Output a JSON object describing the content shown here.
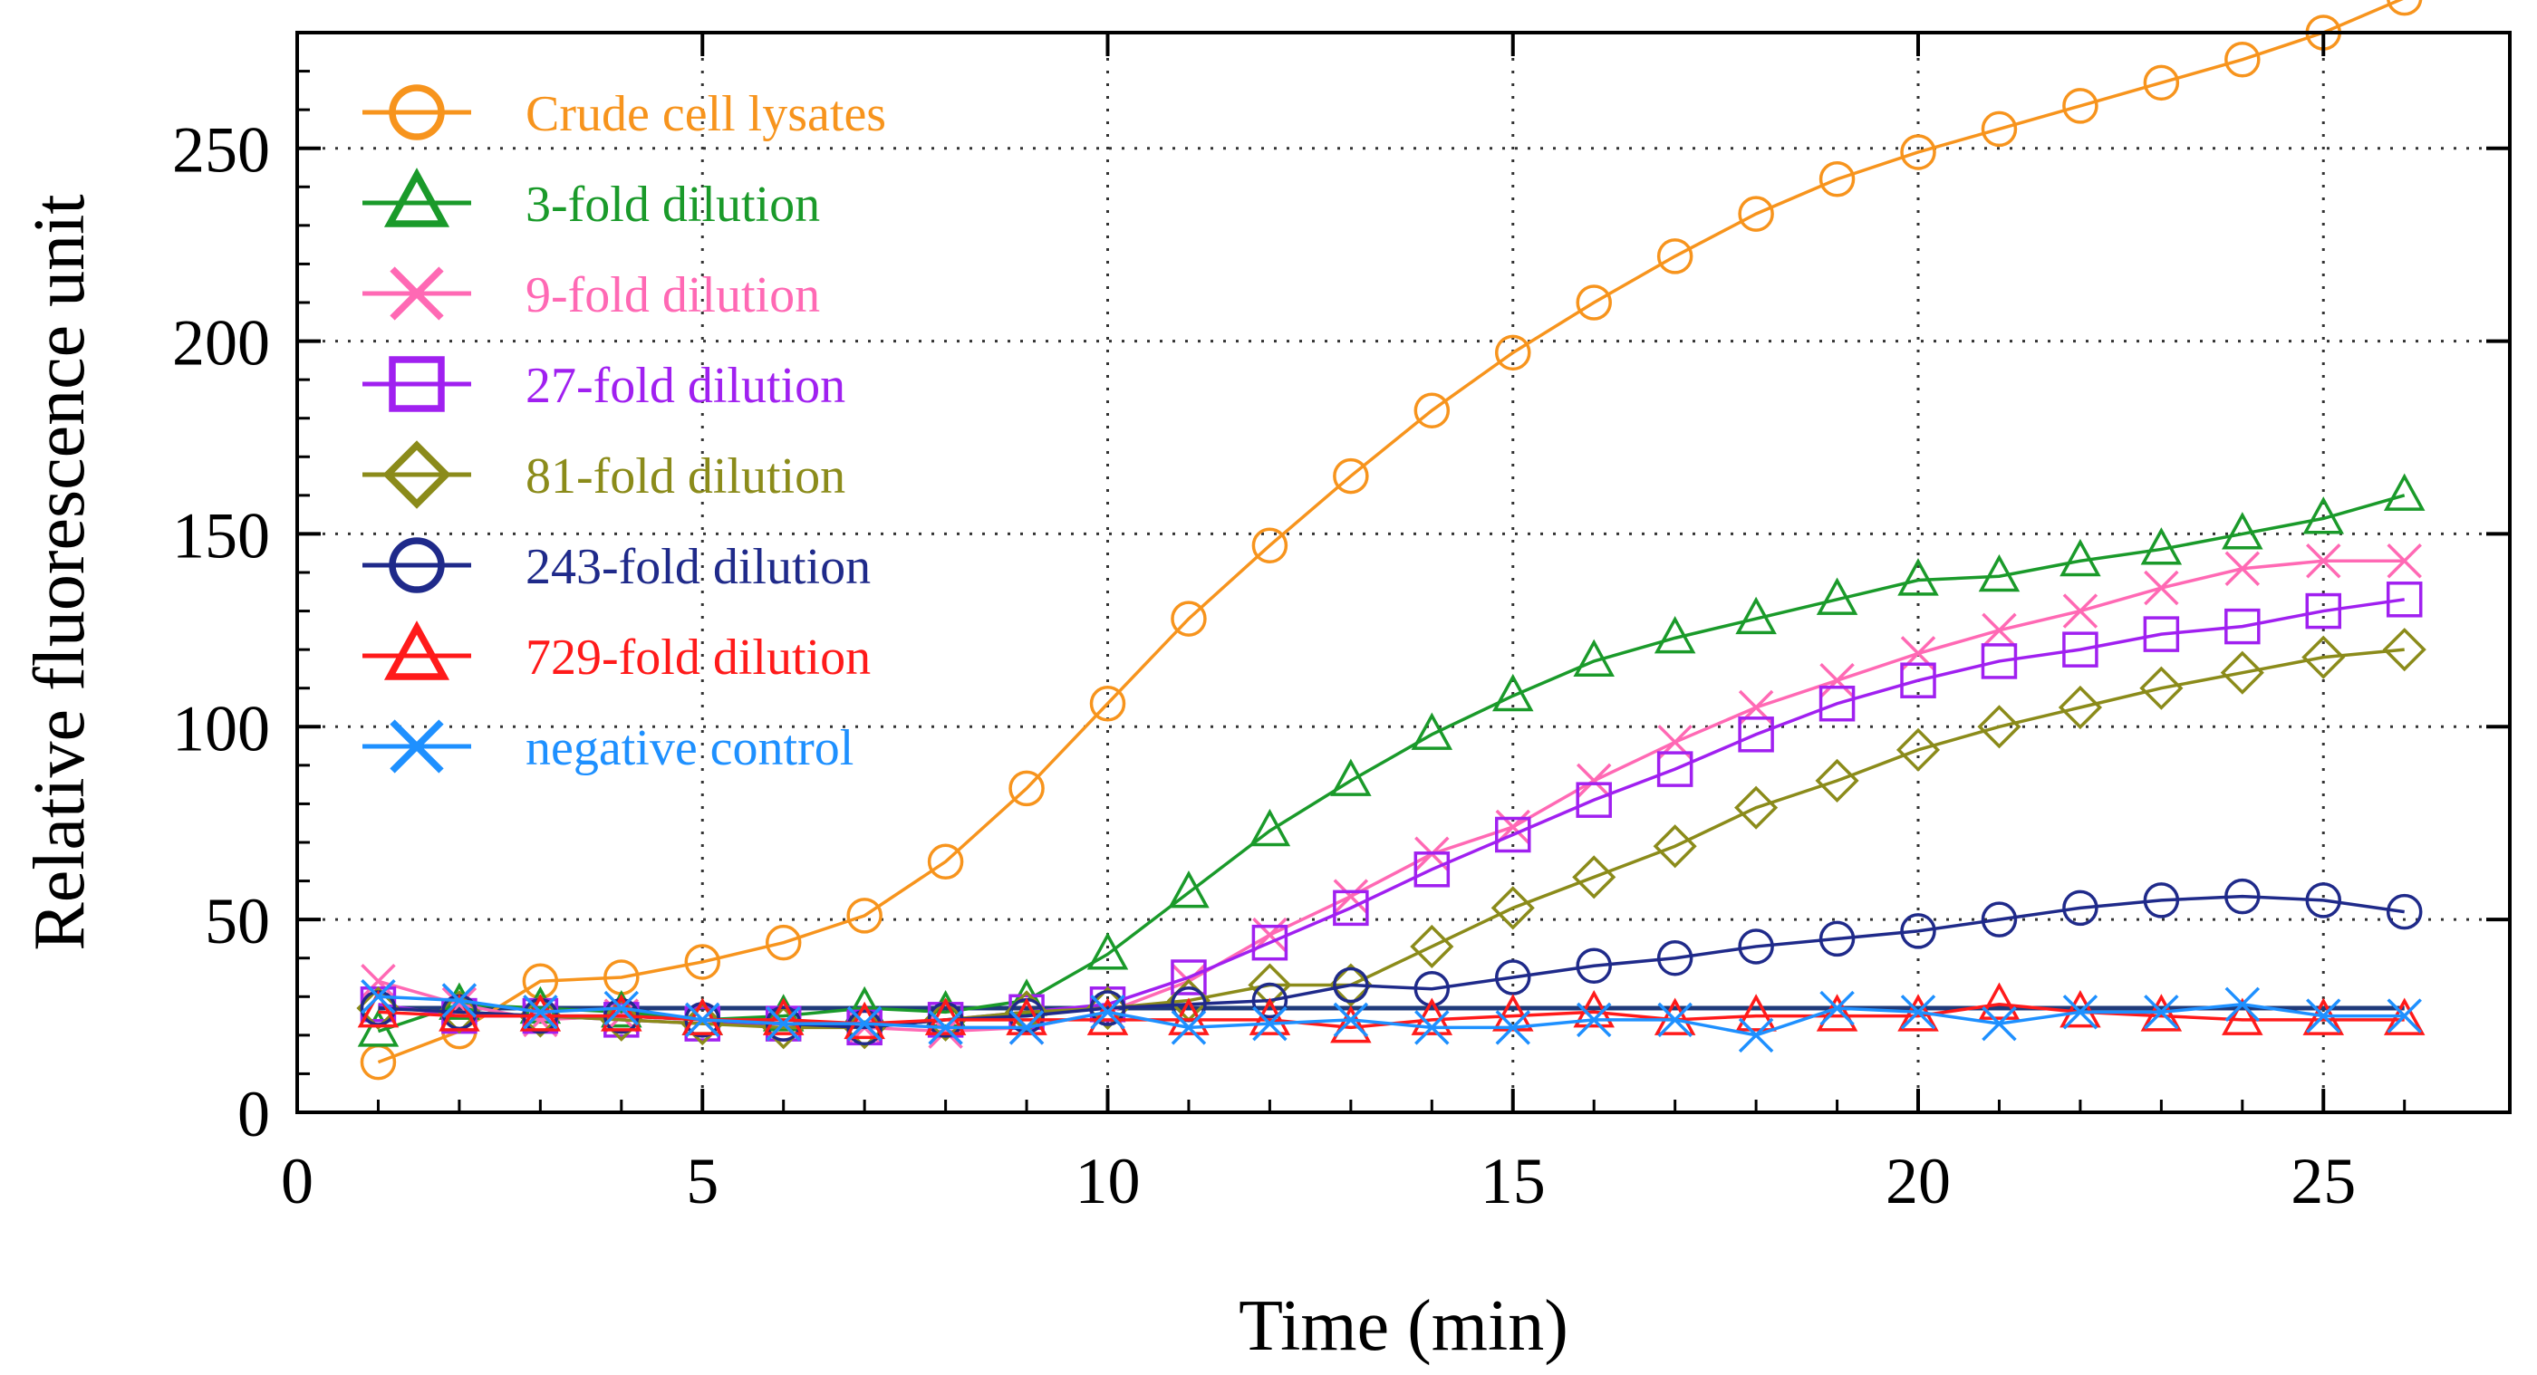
{
  "chart_data": {
    "type": "line",
    "title": "",
    "xlabel": "Time (min)",
    "ylabel": "Relative fluorescence unit",
    "xlim": [
      0,
      27.3
    ],
    "ylim": [
      0,
      280
    ],
    "xticks": [
      0,
      5,
      10,
      15,
      20,
      25
    ],
    "yticks": [
      0,
      50,
      100,
      150,
      200,
      250
    ],
    "xtick_labels": [
      "0",
      "5",
      "10",
      "15",
      "20",
      "25"
    ],
    "ytick_labels": [
      "0",
      "50",
      "100",
      "150",
      "200",
      "250"
    ],
    "grid": "dotted",
    "legend_position": "top-left",
    "x": [
      1,
      2,
      3,
      4,
      5,
      6,
      7,
      8,
      9,
      10,
      11,
      12,
      13,
      14,
      15,
      16,
      17,
      18,
      19,
      20,
      21,
      22,
      23,
      24,
      25,
      26
    ],
    "series": [
      {
        "name": "Crude cell lysates",
        "color": "#f7941d",
        "marker": "circle",
        "values": [
          13,
          21,
          34,
          35,
          39,
          44,
          51,
          65,
          84,
          106,
          128,
          147,
          165,
          182,
          197,
          210,
          222,
          233,
          242,
          249,
          255,
          261,
          267,
          273,
          280,
          289
        ]
      },
      {
        "name": "3-fold dilution",
        "color": "#1a9a2a",
        "marker": "triangle",
        "values": [
          21,
          28,
          27,
          26,
          24,
          25,
          27,
          26,
          29,
          41,
          57,
          73,
          86,
          98,
          108,
          117,
          123,
          128,
          133,
          138,
          139,
          143,
          146,
          150,
          154,
          160
        ]
      },
      {
        "name": "9-fold dilution",
        "color": "#ff69b4",
        "marker": "cross",
        "values": [
          34,
          28,
          24,
          25,
          24,
          23,
          22,
          21,
          22,
          26,
          34,
          46,
          56,
          67,
          74,
          86,
          96,
          105,
          112,
          119,
          125,
          130,
          136,
          141,
          143,
          143
        ]
      },
      {
        "name": "27-fold dilution",
        "color": "#a020f0",
        "marker": "square",
        "values": [
          28,
          25,
          25,
          24,
          23,
          23,
          22,
          24,
          26,
          28,
          35,
          44,
          53,
          63,
          72,
          81,
          89,
          98,
          106,
          112,
          117,
          120,
          124,
          126,
          130,
          133
        ]
      },
      {
        "name": "81-fold dilution",
        "color": "#8b8b1a",
        "marker": "diamond",
        "values": [
          27,
          26,
          25,
          24,
          23,
          22,
          22,
          24,
          26,
          27,
          29,
          33,
          33,
          43,
          53,
          61,
          69,
          79,
          86,
          94,
          100,
          105,
          110,
          114,
          118,
          120
        ]
      },
      {
        "name": "243-fold dilution",
        "color": "#1f2a8a",
        "marker": "circle",
        "values": [
          27,
          26,
          25,
          25,
          24,
          23,
          22,
          24,
          25,
          27,
          28,
          29,
          33,
          32,
          35,
          38,
          40,
          43,
          45,
          47,
          50,
          53,
          55,
          56,
          55,
          52
        ]
      },
      {
        "name": "729-fold dilution",
        "color": "#ff1a1a",
        "marker": "triangle",
        "values": [
          26,
          25,
          25,
          25,
          24,
          24,
          23,
          24,
          24,
          24,
          24,
          24,
          22,
          24,
          25,
          26,
          24,
          25,
          25,
          25,
          28,
          26,
          25,
          24,
          24,
          24
        ]
      },
      {
        "name": "negative control",
        "color": "#1e90ff",
        "marker": "cross",
        "values": [
          30,
          29,
          26,
          27,
          24,
          23,
          23,
          22,
          22,
          26,
          22,
          23,
          24,
          22,
          22,
          24,
          24,
          20,
          27,
          26,
          23,
          26,
          26,
          28,
          25,
          25
        ]
      }
    ],
    "reference_line": {
      "value": 27,
      "color": "#1f3a7a"
    }
  }
}
